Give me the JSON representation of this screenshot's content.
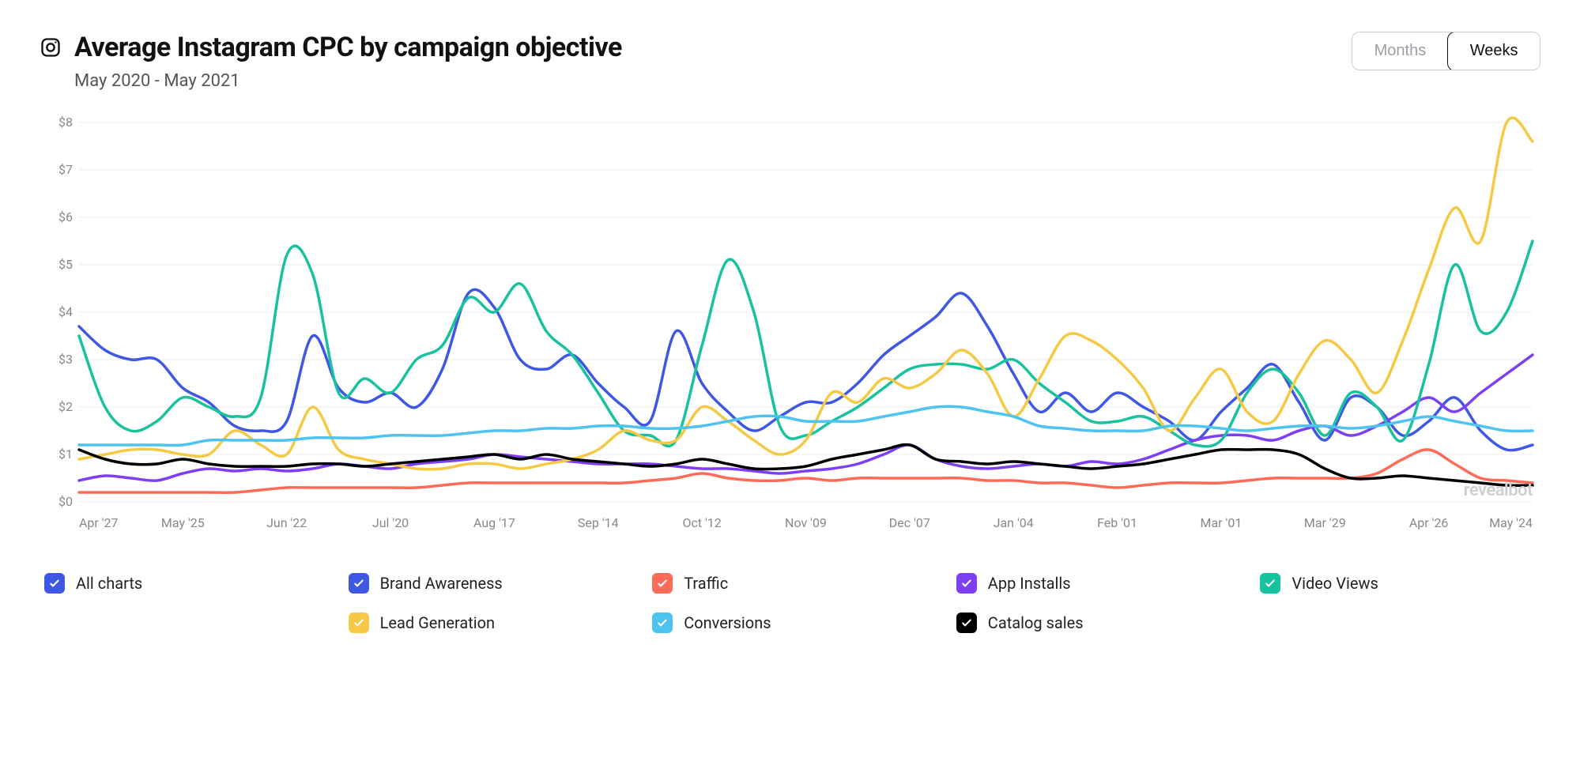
{
  "header": {
    "title": "Average Instagram CPC by campaign objective",
    "subtitle": "May 2020 - May 2021",
    "toggle": {
      "months": "Months",
      "weeks": "Weeks",
      "active": "weeks"
    }
  },
  "watermark": "revealbot",
  "chart": {
    "type": "line",
    "background_color": "#ffffff",
    "grid_color": "#eeeeee",
    "axis_label_color": "#888888",
    "axis_fontsize": 16,
    "line_width": 3.5,
    "ylim": [
      0,
      8
    ],
    "ytick_step": 1,
    "y_prefix": "$",
    "x_labels": [
      "Apr '27",
      "May '25",
      "Jun '22",
      "Jul '20",
      "Aug '17",
      "Sep '14",
      "Oct '12",
      "Nov '09",
      "Dec '07",
      "Jan '04",
      "Feb '01",
      "Mar '01",
      "Mar '29",
      "Apr '26",
      "May '24"
    ],
    "n_points": 57,
    "series": [
      {
        "id": "brand_awareness",
        "label": "Brand Awareness",
        "color": "#3e58e5",
        "values": [
          3.7,
          3.2,
          3.0,
          3.0,
          2.4,
          2.1,
          1.6,
          1.5,
          1.7,
          3.5,
          2.4,
          2.1,
          2.3,
          2.0,
          2.8,
          4.4,
          4.1,
          3.0,
          2.8,
          3.1,
          2.5,
          2.0,
          1.7,
          3.6,
          2.5,
          1.9,
          1.5,
          1.8,
          2.1,
          2.1,
          2.5,
          3.1,
          3.5,
          3.9,
          4.4,
          3.7,
          2.7,
          1.9,
          2.3,
          1.9,
          2.3,
          2.0,
          1.7,
          1.3,
          1.9,
          2.4,
          2.9,
          2.1,
          1.3,
          2.2,
          2.0,
          1.4,
          1.7,
          2.2,
          1.5,
          1.1,
          1.2
        ]
      },
      {
        "id": "traffic",
        "label": "Traffic",
        "color": "#ff6b59",
        "values": [
          0.2,
          0.2,
          0.2,
          0.2,
          0.2,
          0.2,
          0.2,
          0.25,
          0.3,
          0.3,
          0.3,
          0.3,
          0.3,
          0.3,
          0.35,
          0.4,
          0.4,
          0.4,
          0.4,
          0.4,
          0.4,
          0.4,
          0.45,
          0.5,
          0.6,
          0.5,
          0.45,
          0.45,
          0.5,
          0.45,
          0.5,
          0.5,
          0.5,
          0.5,
          0.5,
          0.45,
          0.45,
          0.4,
          0.4,
          0.35,
          0.3,
          0.35,
          0.4,
          0.4,
          0.4,
          0.45,
          0.5,
          0.5,
          0.5,
          0.5,
          0.6,
          0.9,
          1.1,
          0.8,
          0.5,
          0.45,
          0.4
        ]
      },
      {
        "id": "app_installs",
        "label": "App Installs",
        "color": "#7e3ff2",
        "values": [
          0.45,
          0.55,
          0.5,
          0.45,
          0.6,
          0.7,
          0.65,
          0.7,
          0.65,
          0.7,
          0.8,
          0.75,
          0.7,
          0.8,
          0.85,
          0.9,
          1.0,
          0.95,
          0.9,
          0.85,
          0.8,
          0.8,
          0.8,
          0.75,
          0.7,
          0.7,
          0.65,
          0.6,
          0.65,
          0.7,
          0.8,
          1.0,
          1.2,
          0.9,
          0.75,
          0.7,
          0.75,
          0.8,
          0.75,
          0.85,
          0.8,
          0.9,
          1.1,
          1.3,
          1.4,
          1.4,
          1.3,
          1.5,
          1.6,
          1.4,
          1.6,
          1.9,
          2.2,
          1.9,
          2.3,
          2.7,
          3.1
        ]
      },
      {
        "id": "video_views",
        "label": "Video Views",
        "color": "#19c29e",
        "values": [
          3.5,
          2.0,
          1.5,
          1.7,
          2.2,
          2.0,
          1.8,
          2.2,
          5.2,
          4.8,
          2.3,
          2.6,
          2.3,
          3.0,
          3.3,
          4.3,
          4.0,
          4.6,
          3.6,
          3.1,
          2.3,
          1.5,
          1.4,
          1.3,
          3.3,
          5.1,
          4.0,
          1.6,
          1.4,
          1.7,
          2.0,
          2.4,
          2.8,
          2.9,
          2.9,
          2.8,
          3.0,
          2.5,
          2.1,
          1.7,
          1.7,
          1.8,
          1.5,
          1.2,
          1.3,
          2.3,
          2.8,
          2.3,
          1.4,
          2.3,
          2.0,
          1.3,
          2.9,
          5.0,
          3.6,
          4.0,
          5.5
        ]
      },
      {
        "id": "lead_generation",
        "label": "Lead Generation",
        "color": "#f6c945",
        "values": [
          0.9,
          1.0,
          1.1,
          1.1,
          1.0,
          1.0,
          1.5,
          1.2,
          1.0,
          2.0,
          1.1,
          0.9,
          0.8,
          0.7,
          0.7,
          0.8,
          0.8,
          0.7,
          0.8,
          0.9,
          1.1,
          1.5,
          1.3,
          1.3,
          2.0,
          1.7,
          1.3,
          1.0,
          1.3,
          2.3,
          2.1,
          2.6,
          2.4,
          2.7,
          3.2,
          2.7,
          1.8,
          2.6,
          3.5,
          3.4,
          3.0,
          2.4,
          1.5,
          2.2,
          2.8,
          1.9,
          1.7,
          2.7,
          3.4,
          3.0,
          2.3,
          3.4,
          4.9,
          6.2,
          5.5,
          8.0,
          7.6
        ]
      },
      {
        "id": "conversions",
        "label": "Conversions",
        "color": "#4fc3f0",
        "values": [
          1.2,
          1.2,
          1.2,
          1.2,
          1.2,
          1.3,
          1.3,
          1.3,
          1.3,
          1.35,
          1.35,
          1.35,
          1.4,
          1.4,
          1.4,
          1.45,
          1.5,
          1.5,
          1.55,
          1.55,
          1.6,
          1.6,
          1.55,
          1.55,
          1.6,
          1.7,
          1.8,
          1.8,
          1.7,
          1.7,
          1.7,
          1.8,
          1.9,
          2.0,
          2.0,
          1.9,
          1.8,
          1.6,
          1.55,
          1.5,
          1.5,
          1.5,
          1.6,
          1.6,
          1.55,
          1.5,
          1.55,
          1.6,
          1.6,
          1.55,
          1.6,
          1.7,
          1.8,
          1.7,
          1.6,
          1.5,
          1.5
        ]
      },
      {
        "id": "catalog_sales",
        "label": "Catalog sales",
        "color": "#000000",
        "values": [
          1.1,
          0.9,
          0.8,
          0.8,
          0.9,
          0.8,
          0.75,
          0.75,
          0.75,
          0.8,
          0.8,
          0.75,
          0.8,
          0.85,
          0.9,
          0.95,
          1.0,
          0.9,
          1.0,
          0.9,
          0.85,
          0.8,
          0.75,
          0.8,
          0.9,
          0.8,
          0.7,
          0.7,
          0.75,
          0.9,
          1.0,
          1.1,
          1.2,
          0.9,
          0.85,
          0.8,
          0.85,
          0.8,
          0.75,
          0.7,
          0.75,
          0.8,
          0.9,
          1.0,
          1.1,
          1.1,
          1.1,
          1.0,
          0.7,
          0.5,
          0.5,
          0.55,
          0.5,
          0.45,
          0.4,
          0.35,
          0.35
        ]
      }
    ]
  },
  "legend": {
    "all_label": "All charts",
    "all_color": "#3e58e5",
    "items": [
      {
        "id": "all",
        "label": "All charts",
        "color": "#3e58e5",
        "row": 1,
        "col": 1
      },
      {
        "id": "brand_awareness",
        "label": "Brand Awareness",
        "color": "#3e58e5",
        "row": 1,
        "col": 2
      },
      {
        "id": "traffic",
        "label": "Traffic",
        "color": "#ff6b59",
        "row": 1,
        "col": 3
      },
      {
        "id": "app_installs",
        "label": "App Installs",
        "color": "#7e3ff2",
        "row": 1,
        "col": 4
      },
      {
        "id": "video_views",
        "label": "Video Views",
        "color": "#19c29e",
        "row": 1,
        "col": 5
      },
      {
        "id": "lead_generation",
        "label": "Lead Generation",
        "color": "#f6c945",
        "row": 2,
        "col": 2
      },
      {
        "id": "conversions",
        "label": "Conversions",
        "color": "#4fc3f0",
        "row": 2,
        "col": 3
      },
      {
        "id": "catalog_sales",
        "label": "Catalog sales",
        "color": "#000000",
        "row": 2,
        "col": 4
      }
    ]
  }
}
